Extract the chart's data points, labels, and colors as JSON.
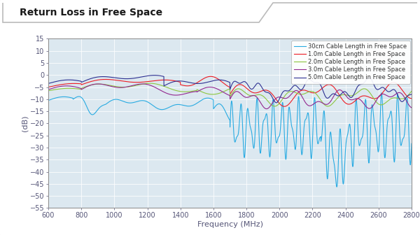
{
  "title": "Return Loss in Free Space",
  "xlabel": "Frequency (MHz)",
  "ylabel": "(dB)",
  "xlim": [
    600,
    2800
  ],
  "ylim": [
    -55,
    15
  ],
  "yticks": [
    15,
    10,
    5,
    0,
    -5,
    -10,
    -15,
    -20,
    -25,
    -30,
    -35,
    -40,
    -45,
    -50,
    -55
  ],
  "xticks": [
    600,
    800,
    1000,
    1200,
    1400,
    1600,
    1800,
    2000,
    2200,
    2400,
    2600,
    2800
  ],
  "legend_labels": [
    "30cm Cable Length in Free Space",
    "1.0m Cable Length in Free Space",
    "2.0m Cable Length in Free Space",
    "3.0m Cable Length in Free Space",
    "5.0m Cable Length in Free Space"
  ],
  "colors": [
    "#29abe2",
    "#ed1c24",
    "#8dc63f",
    "#92278f",
    "#2e3192"
  ],
  "card_bg": "#ffffff",
  "card_border": "#cccccc",
  "plot_bg": "#dce8f0",
  "grid_color": "#ffffff",
  "title_color": "#1a1a1a",
  "tick_color": "#555577",
  "title_fontsize": 10,
  "axis_fontsize": 7,
  "legend_fontsize": 6
}
